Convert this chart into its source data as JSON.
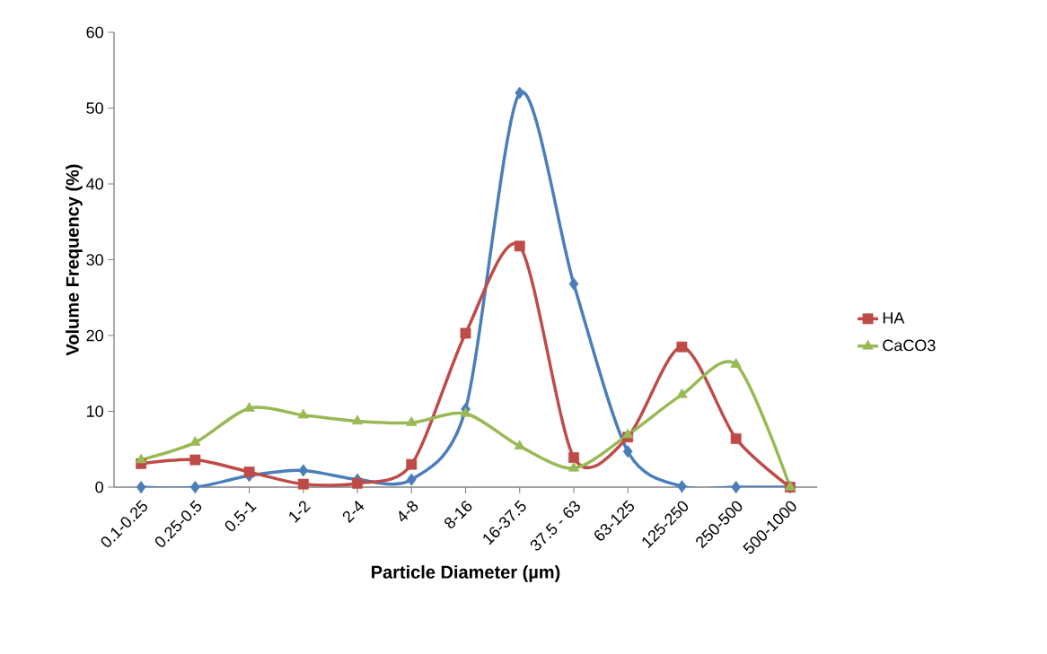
{
  "chart_data": {
    "type": "line",
    "xlabel": "Particle Diameter (µm)",
    "ylabel": "Volume Frequency (%)",
    "categories": [
      "0.1-0.25",
      "0.25-0.5",
      "0.5-1",
      "1-2",
      "2-4",
      "4-8",
      "8-16",
      "16-37.5",
      "37.5 - 63",
      "63-125",
      "125-250",
      "250-500",
      "500-1000"
    ],
    "series": [
      {
        "color": "#4a7ebb",
        "marker": "diamond",
        "values": [
          0,
          0,
          1.5,
          2.2,
          1.0,
          1.0,
          10.3,
          52,
          26.8,
          4.7,
          0.1,
          0,
          0
        ]
      },
      {
        "name": "HA",
        "color": "#be4b48",
        "marker": "square",
        "values": [
          3.1,
          3.6,
          2.0,
          0.4,
          0.5,
          3.0,
          20.3,
          31.8,
          3.9,
          6.6,
          18.5,
          6.4,
          0
        ]
      },
      {
        "name": "CaCO3",
        "color": "#98b954",
        "marker": "triangle",
        "values": [
          3.6,
          5.9,
          10.4,
          9.5,
          8.7,
          8.5,
          9.7,
          5.4,
          2.5,
          6.9,
          12.2,
          16.2,
          0
        ]
      }
    ],
    "ylim": [
      0,
      60
    ],
    "yticks": [
      0,
      10,
      20,
      30,
      40,
      50,
      60
    ],
    "grid": false,
    "legend": "right",
    "line_style": "solid"
  }
}
